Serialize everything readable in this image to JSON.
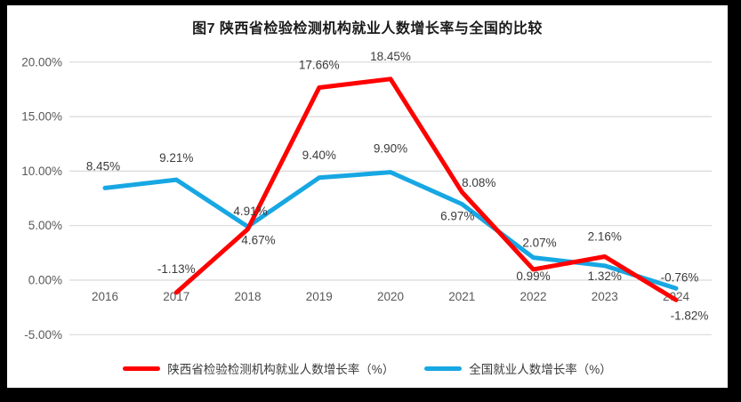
{
  "title": "图7 陕西省检验检测机构就业人数增长率与全国的比较",
  "chart_data": {
    "type": "line",
    "categories": [
      "2016",
      "2017",
      "2018",
      "2019",
      "2020",
      "2021",
      "2022",
      "2023",
      "2024"
    ],
    "series": [
      {
        "name": "陕西省检验检测机构就业人数增长率（%）",
        "color": "#ff0000",
        "values": [
          null,
          -1.13,
          4.67,
          17.66,
          18.45,
          8.08,
          0.99,
          2.16,
          -1.82
        ],
        "data_labels": [
          "",
          "-1.13%",
          "4.67%",
          "17.66%",
          "18.45%",
          "8.08%",
          "0.99%",
          "2.16%",
          "-1.82%"
        ]
      },
      {
        "name": "全国就业人数增长率（%）",
        "color": "#17a7e3",
        "values": [
          8.45,
          9.21,
          4.91,
          9.4,
          9.9,
          6.97,
          2.07,
          1.32,
          -0.76
        ],
        "data_labels": [
          "8.45%",
          "9.21%",
          "4.91%",
          "9.40%",
          "9.90%",
          "6.97%",
          "2.07%",
          "1.32%",
          "-0.76%"
        ]
      }
    ],
    "y_ticks": [
      {
        "label": "20.00%",
        "value": 20
      },
      {
        "label": "15.00%",
        "value": 15
      },
      {
        "label": "10.00%",
        "value": 10
      },
      {
        "label": "5.00%",
        "value": 5
      },
      {
        "label": "0.00%",
        "value": 0
      },
      {
        "label": "-5.00%",
        "value": -5
      }
    ],
    "ylim": [
      -5,
      20
    ],
    "grid": true,
    "legend_position": "bottom"
  },
  "colors": {
    "frame": "#000000",
    "canvas": "#ffffff",
    "gridline": "#d9d9d9",
    "axis_text": "#595959",
    "data_label_text": "#3b3b3b",
    "title_text": "#1a1a1a"
  }
}
